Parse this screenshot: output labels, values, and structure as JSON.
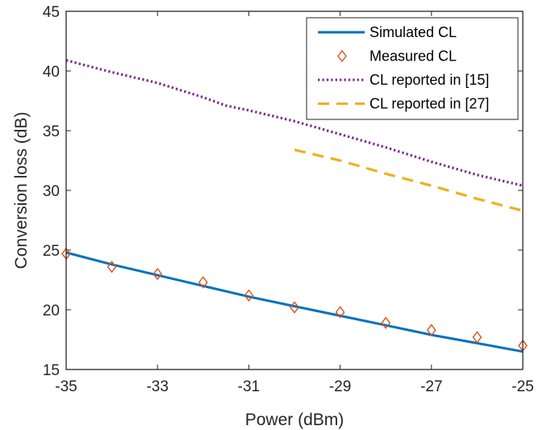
{
  "chart_data": {
    "type": "line",
    "xlabel": "Power (dBm)",
    "ylabel": "Conversion loss (dB)",
    "xlim": [
      -35,
      -25
    ],
    "ylim": [
      15,
      45
    ],
    "xticks": [
      -35,
      -33,
      -31,
      -29,
      -27,
      -25
    ],
    "xtick_labels": [
      "-35",
      "-33",
      "-31",
      "-29",
      "-27",
      "-25"
    ],
    "yticks": [
      15,
      20,
      25,
      30,
      35,
      40,
      45
    ],
    "ytick_labels": [
      "15",
      "20",
      "25",
      "30",
      "35",
      "40",
      "45"
    ],
    "grid": false,
    "legend_position": "top-right",
    "series": [
      {
        "name": "Simulated CL",
        "style": "solid",
        "color": "#0072BD",
        "x": [
          -35,
          -34,
          -33,
          -32,
          -31,
          -30,
          -29,
          -28,
          -27,
          -26,
          -25
        ],
        "y": [
          24.8,
          23.8,
          22.9,
          22.0,
          21.1,
          20.3,
          19.5,
          18.7,
          17.9,
          17.2,
          16.5
        ]
      },
      {
        "name": "Measured CL",
        "style": "markers",
        "marker": "diamond",
        "color": "#D95319",
        "x": [
          -35,
          -34,
          -33,
          -32,
          -31,
          -30,
          -29,
          -28,
          -27,
          -26,
          -25
        ],
        "y": [
          24.7,
          23.6,
          23.0,
          22.3,
          21.2,
          20.2,
          19.8,
          18.9,
          18.3,
          17.7,
          17.0
        ]
      },
      {
        "name": "CL reported in [15]",
        "style": "dotted",
        "color": "#7E2F8E",
        "x": [
          -35,
          -34,
          -33,
          -32,
          -31.5,
          -31,
          -30,
          -29,
          -28,
          -27,
          -26,
          -25
        ],
        "y": [
          40.9,
          39.9,
          39.0,
          37.8,
          37.1,
          36.7,
          35.8,
          34.7,
          33.6,
          32.4,
          31.3,
          30.4
        ]
      },
      {
        "name": "CL reported in [27]",
        "style": "dashed",
        "color": "#EDB120",
        "x": [
          -30,
          -29,
          -28,
          -27,
          -26,
          -25
        ],
        "y": [
          33.4,
          32.5,
          31.4,
          30.4,
          29.3,
          28.3
        ]
      }
    ]
  }
}
